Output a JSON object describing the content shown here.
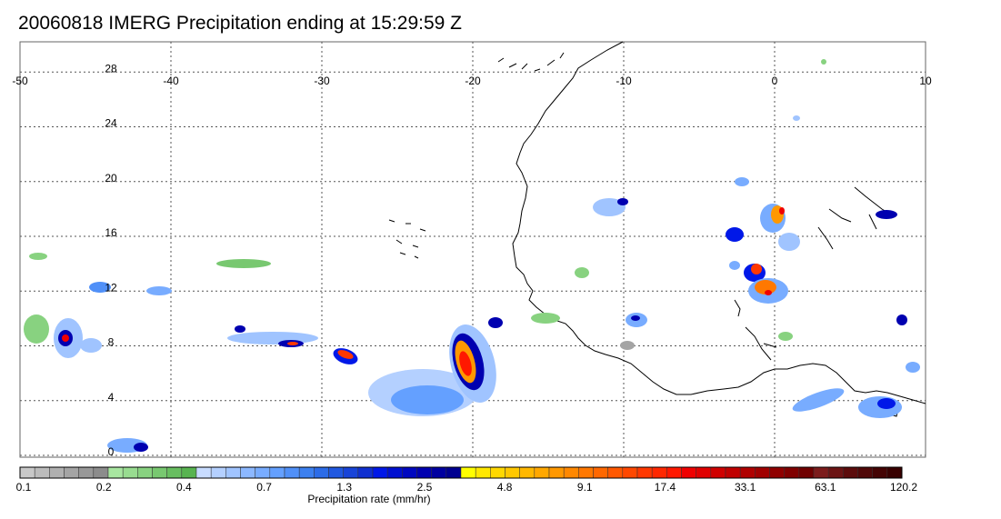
{
  "title": "20060818 IMERG Precipitation ending at 15:29:59 Z",
  "map": {
    "lon_range": [
      -50,
      10
    ],
    "lat_range": [
      -1,
      30
    ],
    "lon_ticks": [
      "-50",
      "-40",
      "-30",
      "-20",
      "-10",
      "0",
      "10"
    ],
    "lat_ticks": [
      "28",
      "24",
      "20",
      "16",
      "12",
      "8",
      "4",
      "0"
    ],
    "gridlines": "dotted"
  },
  "colorbar": {
    "label": "Precipitation rate (mm/hr)",
    "tick_labels": [
      "0.1",
      "0.2",
      "0.4",
      "0.7",
      "1.3",
      "2.5",
      "4.8",
      "9.1",
      "17.4",
      "33.1",
      "63.1",
      "120.2"
    ],
    "colors": [
      "#c8c8c8",
      "#bcbcbc",
      "#b0b0b0",
      "#a4a4a4",
      "#989898",
      "#8c8c8c",
      "#a8e6a0",
      "#98dc90",
      "#88d280",
      "#78c870",
      "#68be60",
      "#58b450",
      "#c8dcff",
      "#b4d0ff",
      "#a0c4ff",
      "#8cb8ff",
      "#78acff",
      "#64a0ff",
      "#5090f8",
      "#3c80f0",
      "#2c6ce8",
      "#2058e0",
      "#1844d8",
      "#1030d0",
      "#0018e8",
      "#0010d0",
      "#0008c0",
      "#0000b0",
      "#0000a0",
      "#000090",
      "#ffff00",
      "#ffe800",
      "#ffd800",
      "#ffc800",
      "#ffb800",
      "#ffa800",
      "#ff9800",
      "#ff8800",
      "#ff7800",
      "#ff6800",
      "#ff5800",
      "#ff4800",
      "#ff3800",
      "#ff2800",
      "#ff1800",
      "#f00000",
      "#e00000",
      "#d00000",
      "#c00000",
      "#b00000",
      "#a00000",
      "#900000",
      "#800000",
      "#700000",
      "#7c1c1c",
      "#6c1414",
      "#5c0c0c",
      "#500808",
      "#440404",
      "#380000"
    ]
  }
}
